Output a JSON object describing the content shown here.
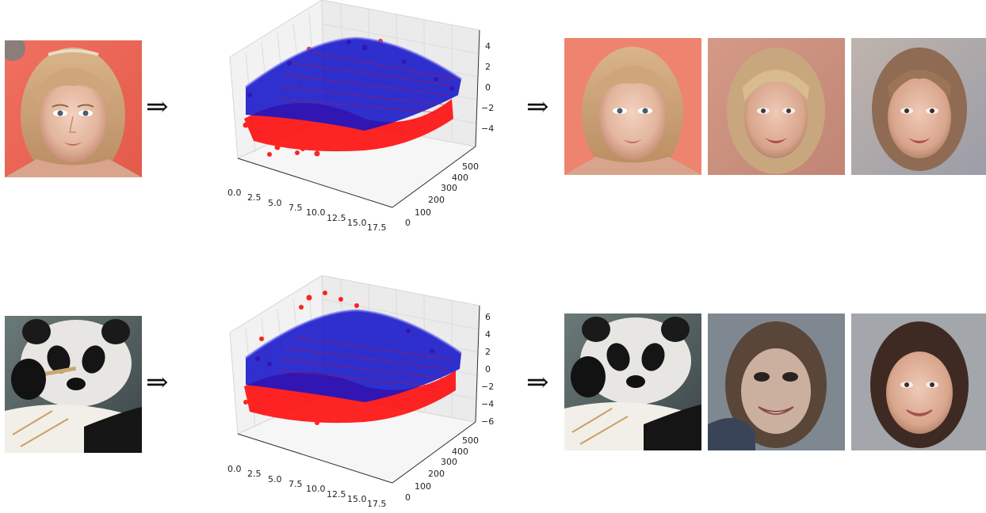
{
  "rows": [
    {
      "arrow_in": "⇒",
      "arrow_out": "⇒",
      "plot": {
        "y_ticks": [
          "0",
          "100",
          "200",
          "300",
          "400",
          "500"
        ],
        "x_ticks": [
          "0.0",
          "2.5",
          "5.0",
          "7.5",
          "10.0",
          "12.5",
          "15.0",
          "17.5"
        ],
        "z_ticks": [
          "4",
          "2",
          "0",
          "−2",
          "−4"
        ]
      }
    },
    {
      "arrow_in": "⇒",
      "arrow_out": "⇒",
      "plot": {
        "y_ticks": [
          "0",
          "100",
          "200",
          "300",
          "400",
          "500"
        ],
        "x_ticks": [
          "0.0",
          "2.5",
          "5.0",
          "7.5",
          "10.0",
          "12.5",
          "15.0",
          "17.5"
        ],
        "z_ticks": [
          "6",
          "4",
          "2",
          "0",
          "−2",
          "−4",
          "−6"
        ]
      }
    }
  ],
  "colors": {
    "points": "#ff0000",
    "surface": "#1010c0",
    "pane": "#f0f0f0"
  },
  "images": {
    "row1": [
      "face-photo-input",
      "face-reconstruction",
      "face-sample-1",
      "face-sample-2"
    ],
    "row2": [
      "panda-photo-input",
      "panda-reconstruction",
      "panda-face-sample-1",
      "panda-face-sample-2"
    ]
  }
}
